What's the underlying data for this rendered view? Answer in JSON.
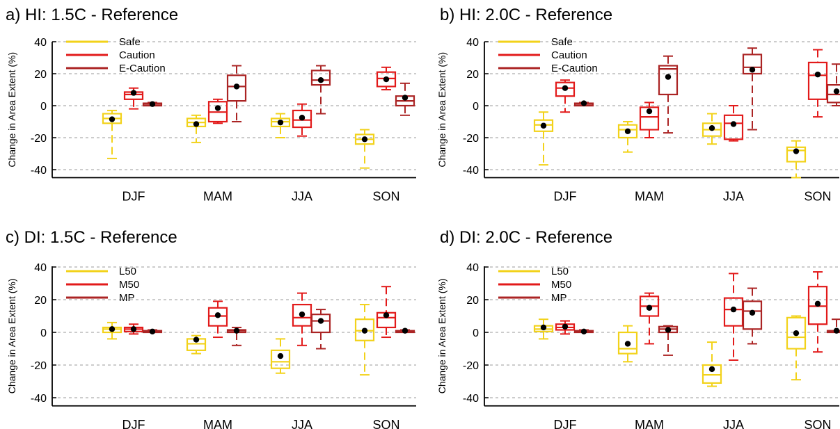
{
  "colors": {
    "yellow": "#f2d21a",
    "red": "#e21a1a",
    "darkred": "#ab2424",
    "grid": "#9a9a9a"
  },
  "chart_data": [
    {
      "type": "box",
      "title": "a) HI: 1.5C - Reference",
      "ylabel": "Change in Area Extent (%)",
      "ylim": [
        -45,
        45
      ],
      "yticks": [
        "40",
        "20",
        "0",
        "-20",
        "-40"
      ],
      "categories": [
        "DJF",
        "MAM",
        "JJA",
        "SON"
      ],
      "legend": [
        "Safe",
        "Caution",
        "E-Caution"
      ],
      "series": [
        {
          "name": "Safe",
          "boxes": [
            {
              "min": -33,
              "q1": -11,
              "median": -8,
              "q3": -5,
              "max": -3,
              "mean": -8.5
            },
            {
              "min": -23,
              "q1": -13,
              "median": -10.5,
              "q3": -8,
              "max": -6,
              "mean": -11.5
            },
            {
              "min": -20,
              "q1": -13,
              "median": -10,
              "q3": -8,
              "max": -5,
              "mean": -10.5
            },
            {
              "min": -39,
              "q1": -24,
              "median": -21,
              "q3": -18,
              "max": -15,
              "mean": -21
            }
          ]
        },
        {
          "name": "Caution",
          "boxes": [
            {
              "min": -2,
              "q1": 4,
              "median": 7,
              "q3": 8.5,
              "max": 11,
              "mean": 8
            },
            {
              "min": -11,
              "q1": -10,
              "median": -4,
              "q3": 2.5,
              "max": 4,
              "mean": -1.5
            },
            {
              "min": -19,
              "q1": -13.5,
              "median": -9,
              "q3": -3,
              "max": 1,
              "mean": -7.5
            },
            {
              "min": 10,
              "q1": 12,
              "median": 17,
              "q3": 21,
              "max": 24,
              "mean": 16.5
            }
          ]
        },
        {
          "name": "E-Caution",
          "boxes": [
            {
              "min": 0,
              "q1": 0,
              "median": 1,
              "q3": 1.5,
              "max": 2,
              "mean": 1
            },
            {
              "min": -10,
              "q1": 3,
              "median": 12,
              "q3": 19,
              "max": 25,
              "mean": 12
            },
            {
              "min": -5,
              "q1": 13,
              "median": 16,
              "q3": 22,
              "max": 25,
              "mean": 16
            },
            {
              "min": -6,
              "q1": 0,
              "median": 3,
              "q3": 6,
              "max": 14,
              "mean": 5
            }
          ]
        }
      ]
    },
    {
      "type": "box",
      "title": "b) HI: 2.0C - Reference",
      "ylabel": "Change in Area Extent (%)",
      "ylim": [
        -45,
        45
      ],
      "yticks": [
        "40",
        "20",
        "0",
        "-20",
        "-40"
      ],
      "categories": [
        "DJF",
        "MAM",
        "JJA",
        "SON"
      ],
      "legend": [
        "Safe",
        "Caution",
        "E-Caution"
      ],
      "series": [
        {
          "name": "Safe",
          "boxes": [
            {
              "min": -37,
              "q1": -16,
              "median": -12,
              "q3": -9,
              "max": -4,
              "mean": -12.5
            },
            {
              "min": -29,
              "q1": -20,
              "median": -15,
              "q3": -12,
              "max": -10,
              "mean": -16
            },
            {
              "min": -24,
              "q1": -19,
              "median": -15,
              "q3": -11,
              "max": -5,
              "mean": -14
            },
            {
              "min": -45,
              "q1": -35,
              "median": -28,
              "q3": -26,
              "max": -22,
              "mean": -28.5
            }
          ]
        },
        {
          "name": "Caution",
          "boxes": [
            {
              "min": -4,
              "q1": 6,
              "median": 11,
              "q3": 14.5,
              "max": 16,
              "mean": 11
            },
            {
              "min": -20,
              "q1": -15,
              "median": -7,
              "q3": -1,
              "max": 2,
              "mean": -3.5
            },
            {
              "min": -22,
              "q1": -21,
              "median": -11,
              "q3": -6,
              "max": 0,
              "mean": -11.5
            },
            {
              "min": -7,
              "q1": 4,
              "median": 19,
              "q3": 27,
              "max": 35,
              "mean": 19.5
            }
          ]
        },
        {
          "name": "E-Caution",
          "boxes": [
            {
              "min": 0,
              "q1": 0,
              "median": 1,
              "q3": 1.5,
              "max": 2,
              "mean": 1.5
            },
            {
              "min": -17,
              "q1": 7,
              "median": 23,
              "q3": 25,
              "max": 31,
              "mean": 18
            },
            {
              "min": -15,
              "q1": 20,
              "median": 24,
              "q3": 32,
              "max": 36,
              "mean": 22.5
            },
            {
              "min": 0,
              "q1": 2,
              "median": 7,
              "q3": 13,
              "max": 26,
              "mean": 9
            }
          ]
        }
      ]
    },
    {
      "type": "box",
      "title": "c) DI: 1.5C - Reference",
      "ylabel": "Change in Area Extent (%)",
      "ylim": [
        -45,
        45
      ],
      "yticks": [
        "40",
        "20",
        "0",
        "-20",
        "-40"
      ],
      "categories": [
        "DJF",
        "MAM",
        "JJA",
        "SON"
      ],
      "legend": [
        "L50",
        "M50",
        "MP"
      ],
      "series": [
        {
          "name": "L50",
          "boxes": [
            {
              "min": -4,
              "q1": 0,
              "median": 2,
              "q3": 3,
              "max": 6,
              "mean": 2
            },
            {
              "min": -13,
              "q1": -11,
              "median": -7,
              "q3": -4,
              "max": -2,
              "mean": -4.5
            },
            {
              "min": -25,
              "q1": -22,
              "median": -18,
              "q3": -11,
              "max": -4,
              "mean": -14.5
            },
            {
              "min": -26,
              "q1": -5,
              "median": 1,
              "q3": 8,
              "max": 17,
              "mean": 1
            }
          ]
        },
        {
          "name": "M50",
          "boxes": [
            {
              "min": -1,
              "q1": 0.5,
              "median": 2,
              "q3": 3,
              "max": 5,
              "mean": 2
            },
            {
              "min": -3,
              "q1": 4,
              "median": 10,
              "q3": 15,
              "max": 19,
              "mean": 10.5
            },
            {
              "min": -8,
              "q1": 4,
              "median": 9,
              "q3": 17,
              "max": 24,
              "mean": 11
            },
            {
              "min": -3,
              "q1": 3,
              "median": 9,
              "q3": 12,
              "max": 28,
              "mean": 10.5
            }
          ]
        },
        {
          "name": "MP",
          "boxes": [
            {
              "min": 0,
              "q1": 0,
              "median": 0.5,
              "q3": 1,
              "max": 1.5,
              "mean": 0.5
            },
            {
              "min": -8,
              "q1": 0,
              "median": 1,
              "q3": 1.5,
              "max": 3,
              "mean": 1
            },
            {
              "min": -10,
              "q1": 0,
              "median": 7,
              "q3": 11,
              "max": 14,
              "mean": 7
            },
            {
              "min": 0,
              "q1": 0,
              "median": 0.5,
              "q3": 1,
              "max": 1.5,
              "mean": 1
            }
          ]
        }
      ]
    },
    {
      "type": "box",
      "title": "d) DI: 2.0C - Reference",
      "ylabel": "Change in Area Extent (%)",
      "ylim": [
        -45,
        45
      ],
      "yticks": [
        "40",
        "20",
        "0",
        "-20",
        "-40"
      ],
      "categories": [
        "DJF",
        "MAM",
        "JJA",
        "SON"
      ],
      "legend": [
        "L50",
        "M50",
        "MP"
      ],
      "series": [
        {
          "name": "L50",
          "boxes": [
            {
              "min": -4,
              "q1": 0.5,
              "median": 2,
              "q3": 4,
              "max": 8,
              "mean": 3
            },
            {
              "min": -18,
              "q1": -13,
              "median": -10,
              "q3": 0,
              "max": 4,
              "mean": -7
            },
            {
              "min": -33,
              "q1": -31,
              "median": -26,
              "q3": -20,
              "max": -6,
              "mean": -22.5
            },
            {
              "min": -29,
              "q1": -10,
              "median": -3,
              "q3": 9,
              "max": 10,
              "mean": -0.5
            }
          ]
        },
        {
          "name": "M50",
          "boxes": [
            {
              "min": -1,
              "q1": 1.5,
              "median": 3,
              "q3": 5,
              "max": 7,
              "mean": 3.5
            },
            {
              "min": -7,
              "q1": 10,
              "median": 16,
              "q3": 22,
              "max": 24,
              "mean": 15
            },
            {
              "min": -17,
              "q1": 4,
              "median": 14,
              "q3": 21,
              "max": 36,
              "mean": 14
            },
            {
              "min": -12,
              "q1": 5,
              "median": 16,
              "q3": 28,
              "max": 37,
              "mean": 17.5
            }
          ]
        },
        {
          "name": "MP",
          "boxes": [
            {
              "min": 0,
              "q1": 0,
              "median": 0.5,
              "q3": 1,
              "max": 1.5,
              "mean": 0.5
            },
            {
              "min": -14,
              "q1": 0,
              "median": 2,
              "q3": 3.5,
              "max": 4,
              "mean": 1.5
            },
            {
              "min": -7,
              "q1": 2,
              "median": 13,
              "q3": 19,
              "max": 27,
              "mean": 12
            },
            {
              "min": 0,
              "q1": 0,
              "median": 0.5,
              "q3": 1,
              "max": 8,
              "mean": 1
            }
          ]
        }
      ]
    }
  ]
}
